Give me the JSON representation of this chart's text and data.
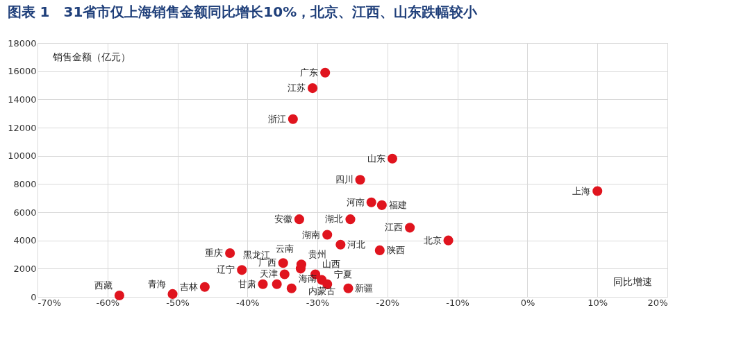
{
  "chart_data": {
    "type": "scatter",
    "title": "图表 1　31省市仅上海销售金额同比增长10%，北京、江西、山东跌幅较小",
    "xlabel": "同比增速",
    "ylabel": "销售金额（亿元）",
    "x": [
      -28.9,
      -30.7,
      -33.5,
      -19.3,
      -23.9,
      10.0,
      -22.3,
      -20.8,
      -32.6,
      -25.3,
      -16.8,
      -11.3,
      -28.6,
      -26.7,
      -21.1,
      -42.5,
      -34.9,
      -32.3,
      -32.4,
      -40.8,
      -34.7,
      -30.3,
      -29.4,
      -28.6,
      -37.8,
      -35.8,
      -33.7,
      -25.6,
      -46.1,
      -50.7,
      -58.3
    ],
    "series": [
      {
        "color": "#e0141e",
        "values": [
          15900,
          14800,
          12600,
          9800,
          8300,
          7500,
          6700,
          6500,
          5500,
          5500,
          4900,
          4000,
          4400,
          3700,
          3300,
          3100,
          2400,
          2300,
          2000,
          1900,
          1600,
          1600,
          1200,
          900,
          900,
          900,
          600,
          600,
          700,
          200,
          100
        ]
      }
    ],
    "annotations": [
      {
        "text": "广东",
        "x": -28.9,
        "y": 15900
      },
      {
        "text": "江苏",
        "x": -30.7,
        "y": 14800
      },
      {
        "text": "浙江",
        "x": -33.5,
        "y": 12600
      },
      {
        "text": "山东",
        "x": -19.3,
        "y": 9800
      },
      {
        "text": "四川",
        "x": -23.9,
        "y": 8300
      },
      {
        "text": "上海",
        "x": 10.0,
        "y": 7500
      },
      {
        "text": "河南",
        "x": -22.3,
        "y": 6700
      },
      {
        "text": "福建",
        "x": -20.8,
        "y": 6500
      },
      {
        "text": "安徽",
        "x": -32.6,
        "y": 5500
      },
      {
        "text": "湖北",
        "x": -25.3,
        "y": 5500
      },
      {
        "text": "江西",
        "x": -16.8,
        "y": 4900
      },
      {
        "text": "北京",
        "x": -11.3,
        "y": 4000
      },
      {
        "text": "湖南",
        "x": -28.6,
        "y": 4400
      },
      {
        "text": "河北",
        "x": -26.7,
        "y": 3700
      },
      {
        "text": "陕西",
        "x": -21.1,
        "y": 3300
      },
      {
        "text": "重庆",
        "x": -42.5,
        "y": 3100
      },
      {
        "text": "广西",
        "x": -34.9,
        "y": 2400
      },
      {
        "text": "贵州",
        "x": -32.3,
        "y": 2300
      },
      {
        "text": "云南",
        "x": -32.4,
        "y": 2000
      },
      {
        "text": "辽宁",
        "x": -40.8,
        "y": 1900
      },
      {
        "text": "天津",
        "x": -34.7,
        "y": 1600
      },
      {
        "text": "山西",
        "x": -30.3,
        "y": 1600
      },
      {
        "text": "内蒙古",
        "x": -29.4,
        "y": 1200
      },
      {
        "text": "宁夏",
        "x": -28.6,
        "y": 900
      },
      {
        "text": "甘肃",
        "x": -37.8,
        "y": 900
      },
      {
        "text": "黑龙江",
        "x": -35.8,
        "y": 900
      },
      {
        "text": "海南",
        "x": -33.7,
        "y": 600
      },
      {
        "text": "新疆",
        "x": -25.6,
        "y": 600
      },
      {
        "text": "吉林",
        "x": -46.1,
        "y": 700
      },
      {
        "text": "青海",
        "x": -50.7,
        "y": 200
      },
      {
        "text": "西藏",
        "x": -58.3,
        "y": 100
      }
    ],
    "xlim": [
      -70,
      20
    ],
    "xticks": [
      {
        "value": -70,
        "label": "-70%"
      },
      {
        "value": -60,
        "label": "-60%"
      },
      {
        "value": -50,
        "label": "-50%"
      },
      {
        "value": -40,
        "label": "-40%"
      },
      {
        "value": -30,
        "label": "-30%"
      },
      {
        "value": -20,
        "label": "-20%"
      },
      {
        "value": -10,
        "label": "-10%"
      },
      {
        "value": 0,
        "label": "0%"
      },
      {
        "value": 10,
        "label": "10%"
      },
      {
        "value": 20,
        "label": "20%"
      }
    ],
    "ylim": [
      0,
      18000
    ],
    "yticks": [
      0,
      2000,
      4000,
      6000,
      8000,
      10000,
      12000,
      14000,
      16000,
      18000
    ],
    "grid": true,
    "marker": "circle",
    "legend": false
  }
}
